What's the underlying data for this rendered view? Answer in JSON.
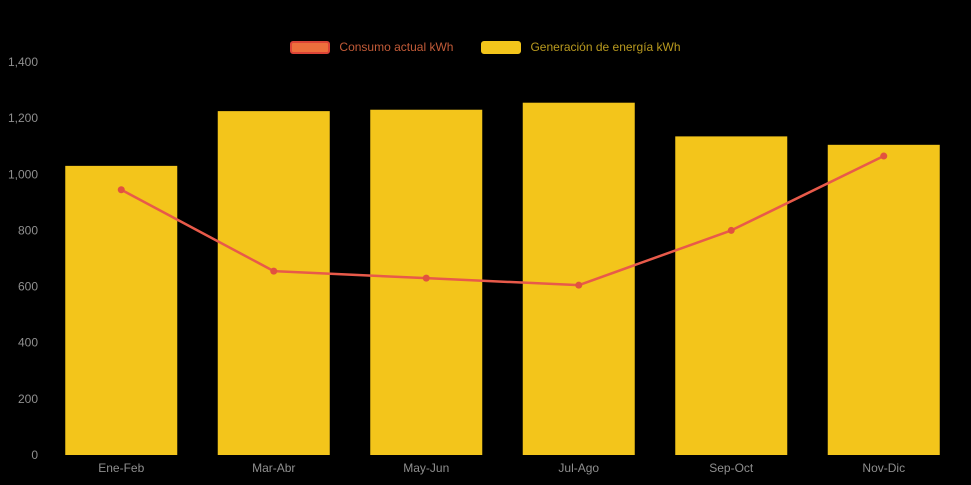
{
  "chart_data": {
    "type": "bar",
    "subtype": "combo-bar-line",
    "title": "",
    "xlabel": "",
    "ylabel": "",
    "categories": [
      "Ene-Feb",
      "Mar-Abr",
      "May-Jun",
      "Jul-Ago",
      "Sep-Oct",
      "Nov-Dic"
    ],
    "series": [
      {
        "name": "Consumo actual kWh",
        "type": "line",
        "color": "#E85A4A",
        "marker_color": "#E2523F",
        "values": [
          945,
          655,
          630,
          605,
          800,
          1065
        ]
      },
      {
        "name": "Generación de energía kWh",
        "type": "bar",
        "color": "#F3C51B",
        "values": [
          1030,
          1225,
          1230,
          1255,
          1135,
          1105
        ]
      }
    ],
    "ylim": [
      0,
      1400
    ],
    "yticks": [
      0,
      200,
      400,
      600,
      800,
      1000,
      1200,
      1400
    ],
    "ytick_labels": [
      "0",
      "200",
      "400",
      "600",
      "800",
      "1,000",
      "1,200",
      "1,400"
    ],
    "grid": false,
    "legend_position": "top"
  },
  "legend": {
    "items": [
      {
        "label": "Consumo actual kWh",
        "swatch_fill": "#ED6F3C",
        "swatch_border": "#DC4437",
        "text_color": "#C25B38"
      },
      {
        "label": "Generación de energía kWh",
        "swatch_fill": "#F3C51B",
        "swatch_border": "#F3C51B",
        "text_color": "#B99A1F"
      }
    ]
  },
  "colors": {
    "background": "#000000",
    "axis_text": "#8F8F8F"
  }
}
